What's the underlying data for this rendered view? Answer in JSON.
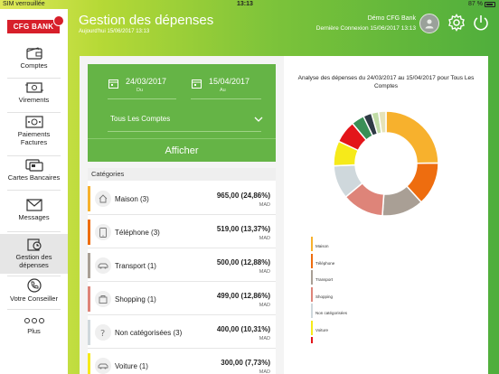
{
  "statusbar": {
    "carrier": "SIM verrouillée",
    "time": "13:13",
    "battery": "87 %"
  },
  "brand": {
    "logo_text": "CFG BANK",
    "color": "#d71f2a"
  },
  "sidebar": {
    "items": [
      {
        "label": "Comptes",
        "icon": "wallet-icon"
      },
      {
        "label": "Virements",
        "icon": "transfer-icon"
      },
      {
        "label": "Paiements\nFactures",
        "icon": "bill-icon"
      },
      {
        "label": "Cartes Bancaires",
        "icon": "card-icon"
      },
      {
        "label": "Messages",
        "icon": "envelope-icon"
      },
      {
        "label": "Gestion des\ndépenses",
        "icon": "expense-icon"
      },
      {
        "label": "Votre Conseiller",
        "icon": "phone-icon"
      },
      {
        "label": "Plus",
        "icon": "more-icon"
      }
    ]
  },
  "header": {
    "title": "Gestion des dépenses",
    "subtitle": "Aujourd'hui 15/06/2017 13:13",
    "user": "Démo CFG Bank",
    "last_connection": "Dernière Connexion 15/06/2017 13:13"
  },
  "filter": {
    "date_from": "24/03/2017",
    "date_from_label": "Du",
    "date_to": "15/04/2017",
    "date_to_label": "Au",
    "account": "Tous Les Comptes",
    "submit_label": "Afficher"
  },
  "categories": {
    "header": "Catégories",
    "currency": "MAD",
    "items": [
      {
        "name": "Maison (3)",
        "amount": "965,00 (24,86%)",
        "color": "#f7b12d",
        "icon": "house-icon"
      },
      {
        "name": "Téléphone (3)",
        "amount": "519,00 (13,37%)",
        "color": "#ee6d0f",
        "icon": "phone-icon"
      },
      {
        "name": "Transport (1)",
        "amount": "500,00 (12,88%)",
        "color": "#a99f95",
        "icon": "car-icon"
      },
      {
        "name": "Shopping (1)",
        "amount": "499,00 (12,86%)",
        "color": "#de8479",
        "icon": "shopping-icon"
      },
      {
        "name": "Non catégorisées (3)",
        "amount": "400,00 (10,31%)",
        "color": "#cfd8dc",
        "icon": "question-icon"
      },
      {
        "name": "Voiture (1)",
        "amount": "300,00 (7,73%)",
        "color": "#f6ea1a",
        "icon": "car-icon"
      }
    ]
  },
  "chart": {
    "title": "Analyse des dépenses du 24/03/2017 au 15/04/2017 pour Tous Les Comptes",
    "legend": [
      "Maison",
      "Téléphone",
      "Transport",
      "Shopping",
      "Non catégorisées",
      "Voiture",
      ""
    ]
  },
  "chart_data": {
    "type": "pie",
    "title": "Analyse des dépenses du 24/03/2017 au 15/04/2017 pour Tous Les Comptes",
    "slices": [
      {
        "label": "Maison",
        "value": 24.86,
        "color": "#f7b12d"
      },
      {
        "label": "Téléphone",
        "value": 13.37,
        "color": "#ee6d0f"
      },
      {
        "label": "Transport",
        "value": 12.88,
        "color": "#a99f95"
      },
      {
        "label": "Shopping",
        "value": 12.86,
        "color": "#de8479"
      },
      {
        "label": "Non catégorisées",
        "value": 10.31,
        "color": "#cfd8dc"
      },
      {
        "label": "Voiture",
        "value": 7.73,
        "color": "#f6ea1a"
      },
      {
        "label": "",
        "value": 6.9,
        "color": "#e3151a"
      },
      {
        "label": "",
        "value": 4.0,
        "color": "#3a8f56"
      },
      {
        "label": "",
        "value": 2.6,
        "color": "#2f3a45"
      },
      {
        "label": "",
        "value": 2.2,
        "color": "#c0dca6"
      },
      {
        "label": "",
        "value": 2.29,
        "color": "#e6e3b8"
      }
    ],
    "legend_position": "bottom"
  }
}
